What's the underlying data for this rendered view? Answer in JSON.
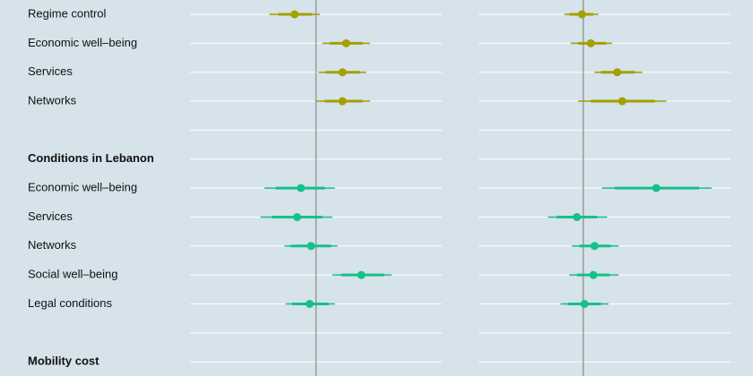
{
  "chart_data": [
    {
      "type": "coefficient",
      "categories": [
        "Regime control",
        "Economic well–being",
        "Services",
        "Networks",
        null,
        "Conditions in Lebanon",
        "Economic well–being",
        "Services",
        "Networks",
        "Social well–being",
        "Legal conditions",
        null,
        "Mobility cost"
      ],
      "bold": [
        5,
        12
      ],
      "xlim": [
        -1,
        1
      ],
      "zero_line": true,
      "grid": true,
      "series": [
        {
          "color": "#a3a000",
          "values": [
            -0.17,
            0.24,
            0.21,
            0.21,
            null,
            null,
            null,
            null,
            null,
            null,
            null,
            null,
            null
          ],
          "lower": [
            -0.37,
            0.05,
            0.02,
            0.0,
            null,
            null,
            null,
            null,
            null,
            null,
            null,
            null,
            null
          ],
          "upper": [
            0.03,
            0.43,
            0.4,
            0.43,
            null,
            null,
            null,
            null,
            null,
            null,
            null,
            null,
            null
          ],
          "lower90": [
            -0.3,
            0.11,
            0.08,
            0.07,
            null,
            null,
            null,
            null,
            null,
            null,
            null,
            null,
            null
          ],
          "upper90": [
            -0.03,
            0.37,
            0.35,
            0.37,
            null,
            null,
            null,
            null,
            null,
            null,
            null,
            null,
            null
          ]
        },
        {
          "color": "#16c08a",
          "values": [
            null,
            null,
            null,
            null,
            null,
            null,
            -0.12,
            -0.15,
            -0.04,
            0.36,
            -0.05,
            null,
            null
          ],
          "lower": [
            null,
            null,
            null,
            null,
            null,
            null,
            -0.41,
            -0.44,
            -0.25,
            0.13,
            -0.24,
            null,
            null
          ],
          "upper": [
            null,
            null,
            null,
            null,
            null,
            null,
            0.15,
            0.13,
            0.17,
            0.6,
            0.15,
            null,
            null
          ],
          "lower90": [
            null,
            null,
            null,
            null,
            null,
            null,
            -0.32,
            -0.35,
            -0.2,
            0.2,
            -0.19,
            null,
            null
          ],
          "upper90": [
            null,
            null,
            null,
            null,
            null,
            null,
            0.07,
            0.05,
            0.12,
            0.54,
            0.1,
            null,
            null
          ]
        }
      ]
    },
    {
      "type": "coefficient",
      "xlim": [
        -0.83,
        1.17
      ],
      "zero_line": true,
      "grid": true,
      "series": [
        {
          "color": "#a3a000",
          "values": [
            -0.01,
            0.06,
            0.27,
            0.31,
            null,
            null,
            null,
            null,
            null,
            null,
            null,
            null,
            null
          ],
          "lower": [
            -0.15,
            -0.1,
            0.09,
            -0.04,
            null,
            null,
            null,
            null,
            null,
            null,
            null,
            null,
            null
          ],
          "upper": [
            0.12,
            0.23,
            0.47,
            0.66,
            null,
            null,
            null,
            null,
            null,
            null,
            null,
            null,
            null
          ],
          "lower90": [
            -0.11,
            -0.04,
            0.14,
            0.06,
            null,
            null,
            null,
            null,
            null,
            null,
            null,
            null,
            null
          ],
          "upper90": [
            0.08,
            0.18,
            0.41,
            0.57,
            null,
            null,
            null,
            null,
            null,
            null,
            null,
            null,
            null
          ]
        },
        {
          "color": "#16c08a",
          "values": [
            null,
            null,
            null,
            null,
            null,
            null,
            0.58,
            -0.05,
            0.09,
            0.08,
            0.01,
            null,
            null
          ],
          "lower": [
            null,
            null,
            null,
            null,
            null,
            null,
            0.15,
            -0.28,
            -0.09,
            -0.11,
            -0.18,
            null,
            null
          ],
          "upper": [
            null,
            null,
            null,
            null,
            null,
            null,
            1.02,
            0.19,
            0.28,
            0.28,
            0.2,
            null,
            null
          ],
          "lower90": [
            null,
            null,
            null,
            null,
            null,
            null,
            0.25,
            -0.21,
            -0.03,
            -0.05,
            -0.12,
            null,
            null
          ],
          "upper90": [
            null,
            null,
            null,
            null,
            null,
            null,
            0.92,
            0.11,
            0.22,
            0.21,
            0.14,
            null,
            null
          ]
        }
      ]
    }
  ]
}
